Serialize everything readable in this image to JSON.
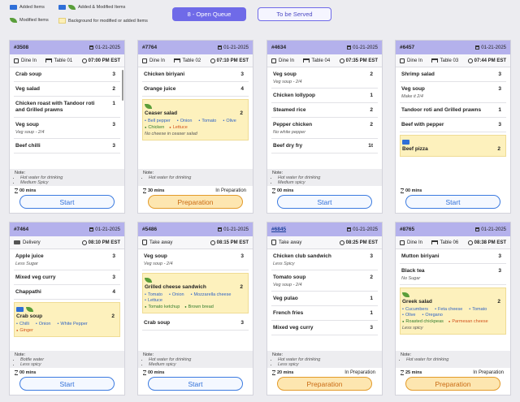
{
  "legend": {
    "added": "Added Items",
    "added_modified": "Added & Modified Items",
    "modified": "Modified Items",
    "background": "Background for modified or added Items"
  },
  "tabs": {
    "open": "8 - Open Queue",
    "served": "To be Served"
  },
  "buttons": {
    "start": "Start",
    "prep": "Preparation"
  },
  "orders": [
    {
      "no": "#3508",
      "date": "01-21-2025",
      "type": "Dine In",
      "table": "Table 01",
      "time": "07:00 PM EST",
      "items": [
        {
          "name": "Crab soup",
          "qty": "3"
        },
        {
          "name": "Veg salad",
          "qty": "2"
        },
        {
          "name": "Chicken roast with Tandoor roti and Grilled prawns",
          "qty": "1"
        },
        {
          "name": "Veg soup",
          "qty": "3",
          "sub": "Veg soup - 2/4"
        },
        {
          "name": "Beef chilli",
          "qty": "3"
        }
      ],
      "note_label": "Note:",
      "notes": [
        "Hot water for drinking",
        "Medium Spicy"
      ],
      "timer": "00 mins",
      "status": "",
      "action": "Start"
    },
    {
      "no": "#7764",
      "date": "01-21-2025",
      "type": "Dine In",
      "table": "Table 02",
      "time": "07:10 PM EST",
      "items": [
        {
          "name": "Chicken biriyani",
          "qty": "3"
        },
        {
          "name": "Orange juice",
          "qty": "4"
        },
        {
          "name": "Ceaser salad",
          "qty": "2",
          "highlight": true,
          "icons": [
            "leaf"
          ],
          "mods": [
            "Bell pepper",
            "Onion",
            "Tomato",
            "Olive"
          ],
          "opts": [
            {
              "t": "Chicken",
              "c": "g"
            },
            {
              "t": "Lettuce",
              "c": "o"
            }
          ],
          "sub": "No cheese in ceaser salad"
        }
      ],
      "note_label": "Note:",
      "notes": [
        "Hot water for drinking"
      ],
      "timer": "30 mins",
      "status": "In Preparation",
      "action": "Preparation"
    },
    {
      "no": "#4634",
      "date": "01-21-2025",
      "type": "Dine In",
      "table": "Table 04",
      "time": "07:35 PM EST",
      "items": [
        {
          "name": "Veg soup",
          "qty": "2",
          "sub": "Veg soup - 2/4"
        },
        {
          "name": "Chicken lollypop",
          "qty": "1"
        },
        {
          "name": "Steamed rice",
          "qty": "2"
        },
        {
          "name": "Pepper chicken",
          "qty": "2",
          "sub": "No white pepper"
        },
        {
          "name": "Beef dry fry",
          "qty": "1t"
        }
      ],
      "note_label": "Note:",
      "notes": [
        "Hot water for drinking",
        "Medium spicy"
      ],
      "timer": "00 mins",
      "status": "",
      "action": "Start"
    },
    {
      "no": "#6457",
      "date": "01-21-2025",
      "type": "Dine In",
      "table": "Table 03",
      "time": "07:44 PM EST",
      "items": [
        {
          "name": "Shrimp salad",
          "qty": "3"
        },
        {
          "name": "Veg soup",
          "qty": "3",
          "sub": "Make it 2/4"
        },
        {
          "name": "Tandoor roti and Grilled prawns",
          "qty": "1"
        },
        {
          "name": "Beef with pepper",
          "qty": "3"
        },
        {
          "name": "Beef pizza",
          "qty": "2",
          "highlight": true,
          "icons": [
            "add"
          ]
        }
      ],
      "note_label": "",
      "notes": [],
      "timer": "00 mins",
      "status": "",
      "action": "Start"
    },
    {
      "no": "#7464",
      "date": "01-21-2025",
      "type": "Delivery",
      "table": "",
      "time": "08:10 PM EST",
      "items": [
        {
          "name": "Apple juice",
          "qty": "3",
          "sub": "Less Sugar"
        },
        {
          "name": "Mixed veg curry",
          "qty": "3"
        },
        {
          "name": "Chappathi",
          "qty": "4"
        },
        {
          "name": "Crab soup",
          "qty": "2",
          "highlight": true,
          "icons": [
            "add",
            "leaf"
          ],
          "mods": [
            "Chilli",
            "Onion",
            "White Pepper"
          ],
          "opts": [
            {
              "t": "Ginger",
              "c": "o"
            }
          ]
        }
      ],
      "note_label": "Note:",
      "notes": [
        "Bottle water",
        "Less spicy"
      ],
      "timer": "00 mins",
      "status": "",
      "action": "Start"
    },
    {
      "no": "#5486",
      "date": "01-21-2025",
      "type": "Take away",
      "table": "",
      "time": "08:15 PM EST",
      "items": [
        {
          "name": "Veg soup",
          "qty": "3",
          "sub": "Veg soup - 2/4"
        },
        {
          "name": "Grilled cheese sandwich",
          "qty": "2",
          "highlight": true,
          "icons": [
            "leaf"
          ],
          "mods": [
            "Tomato",
            "Onion",
            "Mozzarella cheese",
            "Lettuce"
          ],
          "opts": [
            {
              "t": "Tomato ketchup",
              "c": "g"
            },
            {
              "t": "Brown bread",
              "c": "g"
            }
          ]
        },
        {
          "name": "Crab soup",
          "qty": "3"
        }
      ],
      "note_label": "Note:",
      "notes": [
        "Hot water for drinking",
        "Medium spicy"
      ],
      "timer": "00 mins",
      "status": "",
      "action": "Start"
    },
    {
      "no": "#6845",
      "date": "01-21-2025",
      "type": "Take away",
      "table": "",
      "time": "08:25 PM EST",
      "items": [
        {
          "name": "Chicken club sandwich",
          "qty": "3",
          "sub": "Less Spicy"
        },
        {
          "name": "Tomato soup",
          "qty": "2",
          "sub": "Veg soup - 2/4"
        },
        {
          "name": "Veg pulao",
          "qty": "1"
        },
        {
          "name": "French fries",
          "qty": "1"
        },
        {
          "name": "Mixed veg curry",
          "qty": "3"
        }
      ],
      "note_label": "Note:",
      "notes": [
        "Hot water for drinking",
        "Less spicy"
      ],
      "timer": "20 mins",
      "status": "In Preparation",
      "action": "Preparation"
    },
    {
      "no": "#8765",
      "date": "01-21-2025",
      "type": "Dine In",
      "table": "Table 06",
      "time": "08:38 PM EST",
      "items": [
        {
          "name": "Mutton biriyani",
          "qty": "3"
        },
        {
          "name": "Black tea",
          "qty": "3",
          "sub": "No Sugar"
        },
        {
          "name": "Greek salad",
          "qty": "2",
          "highlight": true,
          "icons": [
            "leaf"
          ],
          "mods": [
            "Cucumbers",
            "Feta cheese",
            "Tomato",
            "Olive",
            "Oregano"
          ],
          "opts": [
            {
              "t": "Roasted chickpeas",
              "c": "g"
            },
            {
              "t": "Parmesan cheese",
              "c": "o"
            }
          ],
          "sub": "Less spicy"
        }
      ],
      "note_label": "Note:",
      "notes": [
        "Hot water for drinking"
      ],
      "timer": "25 mins",
      "status": "In Preparation",
      "action": "Preparation"
    }
  ]
}
